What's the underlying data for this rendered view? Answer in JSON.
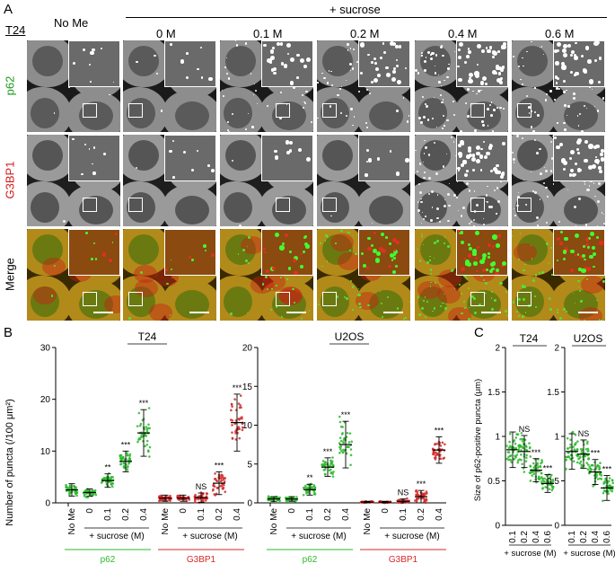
{
  "figure": {
    "panel_a": {
      "letter": "A",
      "cell_line": "T24",
      "control_header": "No Me",
      "treatment_header": "+ sucrose",
      "columns": [
        "0 M",
        "0.1 M",
        "0.2 M",
        "0.4 M",
        "0.6 M"
      ],
      "rows": [
        {
          "label": "p62",
          "color": "#1a9a1a"
        },
        {
          "label": "G3BP1",
          "color": "#d11a1a"
        },
        {
          "label": "Merge",
          "color": "#000000"
        }
      ]
    },
    "panel_b": {
      "letter": "B",
      "ylabel": "Number of puncta (/100 μm²)",
      "treatment_label": "+ sucrose (M)",
      "group_labels": {
        "p62": "p62",
        "g3bp1": "G3BP1"
      },
      "group_colors": {
        "p62": "#2db82d",
        "g3bp1": "#d42a2a"
      }
    },
    "panel_c": {
      "letter": "C",
      "ylabel": "Size of p62-positive puncta (μm)",
      "treatment_label": "+ sucrose (M)"
    }
  },
  "chart_data": [
    {
      "type": "scatter",
      "title": "T24",
      "ylabel": "Number of puncta (/100 μm²)",
      "ylim": [
        0,
        30
      ],
      "yticks": [
        0,
        10,
        20,
        30
      ],
      "categories": [
        "No Me",
        "0",
        "0.1",
        "0.2",
        "0.4",
        "No Me",
        "0",
        "0.1",
        "0.2",
        "0.4"
      ],
      "series": [
        {
          "name": "p62",
          "color": "#2db82d",
          "x": [
            "No Me",
            "0",
            "0.1",
            "0.2",
            "0.4"
          ],
          "mean": [
            2.5,
            2.0,
            4.3,
            8.0,
            13.5
          ],
          "sd": [
            1.2,
            0.7,
            1.3,
            2.0,
            4.5
          ],
          "significance": [
            "",
            "",
            "**",
            "***",
            "***"
          ]
        },
        {
          "name": "G3BP1",
          "color": "#d42a2a",
          "x": [
            "No Me",
            "0",
            "0.1",
            "0.2",
            "0.4"
          ],
          "mean": [
            0.9,
            0.9,
            1.0,
            3.8,
            15.5
          ],
          "sd": [
            0.6,
            0.6,
            0.9,
            2.2,
            5.5
          ],
          "significance": [
            "",
            "",
            "NS",
            "***",
            "***"
          ]
        }
      ]
    },
    {
      "type": "scatter",
      "title": "U2OS",
      "ylim": [
        0,
        20
      ],
      "yticks": [
        0,
        5,
        10,
        15,
        20
      ],
      "categories": [
        "No Me",
        "0",
        "0.1",
        "0.2",
        "0.4",
        "No Me",
        "0",
        "0.1",
        "0.2",
        "0.4"
      ],
      "series": [
        {
          "name": "p62",
          "color": "#2db82d",
          "x": [
            "No Me",
            "0",
            "0.1",
            "0.2",
            "0.4"
          ],
          "mean": [
            0.5,
            0.5,
            1.7,
            4.6,
            7.5
          ],
          "sd": [
            0.3,
            0.3,
            0.7,
            1.2,
            3.0
          ],
          "significance": [
            "",
            "",
            "**",
            "***",
            "***"
          ]
        },
        {
          "name": "G3BP1",
          "color": "#d42a2a",
          "x": [
            "No Me",
            "0",
            "0.1",
            "0.2",
            "0.4"
          ],
          "mean": [
            0.1,
            0.1,
            0.2,
            0.8,
            6.8
          ],
          "sd": [
            0.1,
            0.1,
            0.3,
            0.8,
            1.7
          ],
          "significance": [
            "",
            "",
            "NS",
            "***",
            "***"
          ]
        }
      ]
    },
    {
      "type": "scatter",
      "title": "T24",
      "ylabel": "Size of p62-positive puncta (μm)",
      "ylim": [
        0,
        2.0
      ],
      "yticks": [
        0,
        0.5,
        1.0,
        1.5,
        2.0
      ],
      "categories": [
        "0.1",
        "0.2",
        "0.4",
        "0.6"
      ],
      "series": [
        {
          "name": "p62",
          "color": "#2db82d",
          "x": [
            "0.1",
            "0.2",
            "0.4",
            "0.6"
          ],
          "mean": [
            0.85,
            0.83,
            0.62,
            0.47
          ],
          "sd": [
            0.2,
            0.18,
            0.13,
            0.1
          ],
          "significance": [
            "",
            "NS",
            "***",
            "***"
          ]
        }
      ]
    },
    {
      "type": "scatter",
      "title": "U2OS",
      "ylim": [
        0,
        2.0
      ],
      "yticks": [
        0,
        0.5,
        1.0,
        1.5,
        2.0
      ],
      "categories": [
        "0.1",
        "0.2",
        "0.4",
        "0.6"
      ],
      "series": [
        {
          "name": "p62",
          "color": "#2db82d",
          "x": [
            "0.1",
            "0.2",
            "0.4",
            "0.6"
          ],
          "mean": [
            0.83,
            0.8,
            0.6,
            0.42
          ],
          "sd": [
            0.2,
            0.16,
            0.14,
            0.14
          ],
          "significance": [
            "",
            "NS",
            "***",
            "***"
          ]
        }
      ]
    }
  ]
}
